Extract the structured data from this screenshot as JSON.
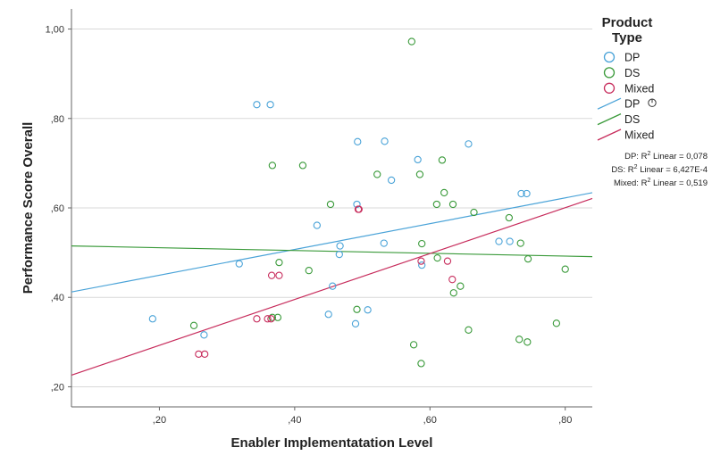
{
  "colors": {
    "DP": "#4aa3d8",
    "DS": "#3a9a3a",
    "Mixed": "#c72c5c",
    "grid": "#d9d9d9",
    "axis": "#666666"
  },
  "chart_data": {
    "type": "scatter",
    "xlabel": "Enabler Implementatation Level",
    "ylabel": "Performance Score Overall",
    "xlim": [
      0.07,
      0.84
    ],
    "ylim": [
      0.155,
      1.045
    ],
    "grid": "horizontal",
    "legend_position": "right",
    "legend_title_line1": "Product",
    "legend_title_line2": "Type",
    "x_ticks": [
      {
        "v": 0.2,
        "label": ",20"
      },
      {
        "v": 0.4,
        "label": ",40"
      },
      {
        "v": 0.6,
        "label": ",60"
      },
      {
        "v": 0.8,
        "label": ",80"
      }
    ],
    "y_ticks": [
      {
        "v": 0.2,
        "label": ",20"
      },
      {
        "v": 0.4,
        "label": ",40"
      },
      {
        "v": 0.6,
        "label": ",60"
      },
      {
        "v": 0.8,
        "label": ",80"
      },
      {
        "v": 1.0,
        "label": "1,00"
      }
    ],
    "series": [
      {
        "name": "DP",
        "points": [
          [
            0.19,
            0.352
          ],
          [
            0.266,
            0.316
          ],
          [
            0.318,
            0.475
          ],
          [
            0.344,
            0.831
          ],
          [
            0.364,
            0.831
          ],
          [
            0.433,
            0.561
          ],
          [
            0.45,
            0.362
          ],
          [
            0.456,
            0.425
          ],
          [
            0.466,
            0.496
          ],
          [
            0.467,
            0.515
          ],
          [
            0.49,
            0.341
          ],
          [
            0.492,
            0.608
          ],
          [
            0.493,
            0.748
          ],
          [
            0.508,
            0.372
          ],
          [
            0.532,
            0.521
          ],
          [
            0.533,
            0.749
          ],
          [
            0.543,
            0.662
          ],
          [
            0.582,
            0.708
          ],
          [
            0.588,
            0.472
          ],
          [
            0.657,
            0.743
          ],
          [
            0.702,
            0.525
          ],
          [
            0.718,
            0.525
          ],
          [
            0.735,
            0.632
          ],
          [
            0.743,
            0.632
          ]
        ],
        "fit": [
          [
            0.07,
            0.412
          ],
          [
            0.84,
            0.634
          ]
        ]
      },
      {
        "name": "DS",
        "points": [
          [
            0.251,
            0.337
          ],
          [
            0.367,
            0.355
          ],
          [
            0.367,
            0.695
          ],
          [
            0.375,
            0.355
          ],
          [
            0.377,
            0.478
          ],
          [
            0.412,
            0.695
          ],
          [
            0.421,
            0.46
          ],
          [
            0.453,
            0.608
          ],
          [
            0.492,
            0.373
          ],
          [
            0.522,
            0.675
          ],
          [
            0.573,
            0.972
          ],
          [
            0.576,
            0.294
          ],
          [
            0.585,
            0.675
          ],
          [
            0.587,
            0.252
          ],
          [
            0.588,
            0.52
          ],
          [
            0.61,
            0.608
          ],
          [
            0.611,
            0.488
          ],
          [
            0.618,
            0.707
          ],
          [
            0.621,
            0.634
          ],
          [
            0.634,
            0.608
          ],
          [
            0.635,
            0.41
          ],
          [
            0.645,
            0.425
          ],
          [
            0.657,
            0.327
          ],
          [
            0.665,
            0.59
          ],
          [
            0.717,
            0.578
          ],
          [
            0.732,
            0.306
          ],
          [
            0.734,
            0.521
          ],
          [
            0.744,
            0.3
          ],
          [
            0.745,
            0.486
          ],
          [
            0.787,
            0.342
          ],
          [
            0.8,
            0.463
          ]
        ],
        "fit": [
          [
            0.07,
            0.515
          ],
          [
            0.84,
            0.491
          ]
        ]
      },
      {
        "name": "Mixed",
        "points": [
          [
            0.258,
            0.273
          ],
          [
            0.267,
            0.273
          ],
          [
            0.344,
            0.352
          ],
          [
            0.36,
            0.352
          ],
          [
            0.365,
            0.352
          ],
          [
            0.366,
            0.449
          ],
          [
            0.377,
            0.449
          ],
          [
            0.494,
            0.597
          ],
          [
            0.495,
            0.597
          ],
          [
            0.587,
            0.481
          ],
          [
            0.626,
            0.481
          ],
          [
            0.633,
            0.44
          ]
        ],
        "fit": [
          [
            0.07,
            0.226
          ],
          [
            0.84,
            0.621
          ]
        ]
      }
    ],
    "legend_items": [
      {
        "series": "DP",
        "kind": "marker",
        "label": "DP"
      },
      {
        "series": "DS",
        "kind": "marker",
        "label": "DS"
      },
      {
        "series": "Mixed",
        "kind": "marker",
        "label": "Mixed"
      },
      {
        "series": "DP",
        "kind": "line",
        "label": "DP"
      },
      {
        "series": "DS",
        "kind": "line",
        "label": "DS"
      },
      {
        "series": "Mixed",
        "kind": "line",
        "label": "Mixed"
      }
    ],
    "r2_annotations": [
      {
        "prefix": "DP: R",
        "sup": "2",
        "suffix": " Linear = 0,078"
      },
      {
        "prefix": "DS: R",
        "sup": "2",
        "suffix": " Linear = 6,427E-4"
      },
      {
        "prefix": "Mixed: R",
        "sup": "2",
        "suffix": " Linear = 0,519"
      }
    ]
  }
}
